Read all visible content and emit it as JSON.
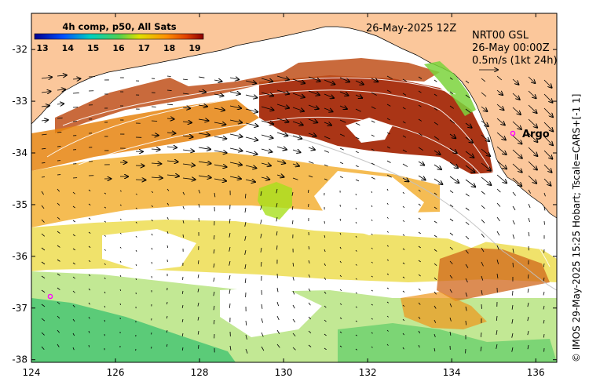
{
  "colorbar": {
    "title": "4h comp, p50, All Sats",
    "ticks": [
      "13",
      "14",
      "15",
      "16",
      "17",
      "18",
      "19"
    ]
  },
  "header": {
    "date": "26-May-2025 12Z",
    "current_source": "NRT00 GSL",
    "current_time": "26-May 00:00Z",
    "vector_scale": "0.5m/s (1kt 24h)"
  },
  "argo": {
    "label": "Argo"
  },
  "axes": {
    "x_ticks": [
      "124",
      "126",
      "128",
      "130",
      "132",
      "134",
      "136"
    ],
    "y_ticks": [
      "-32",
      "-33",
      "-34",
      "-35",
      "-36",
      "-37",
      "-38"
    ],
    "xlim": [
      124,
      136.5
    ],
    "ylim": [
      -38.05,
      -31.3
    ]
  },
  "side_note": "© IMOS 29-May-2025 15:25 Hobart; Tscale=CARS+[-1 1]",
  "colors": {
    "land": "#fbc79b",
    "argo_marker": "#ff00ff"
  }
}
